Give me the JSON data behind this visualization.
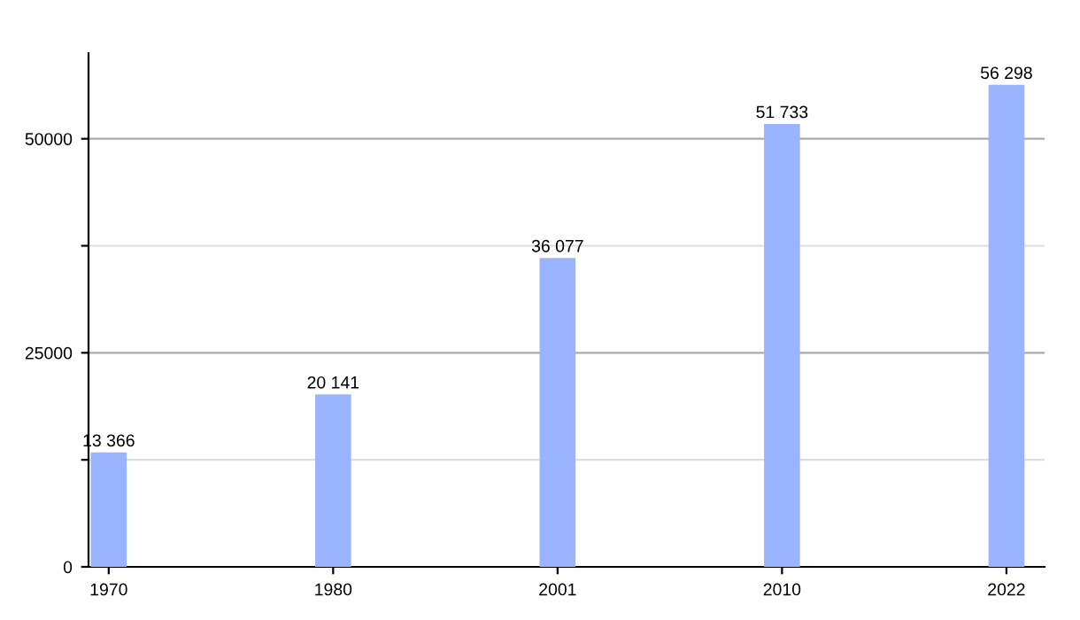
{
  "chart_data": {
    "type": "bar",
    "categories": [
      "1970",
      "1980",
      "2001",
      "2010",
      "2022"
    ],
    "values": [
      13366,
      20141,
      36077,
      51733,
      56298
    ],
    "value_labels": [
      "13 366",
      "20 141",
      "36 077",
      "51 733",
      "56 298"
    ],
    "color": "#99b3ff",
    "ylim": [
      0,
      60000
    ],
    "yticks": [
      0,
      {
        "value": 12500,
        "label": null
      },
      25000,
      {
        "value": 37500,
        "label": null
      },
      50000
    ],
    "grid": "y"
  }
}
